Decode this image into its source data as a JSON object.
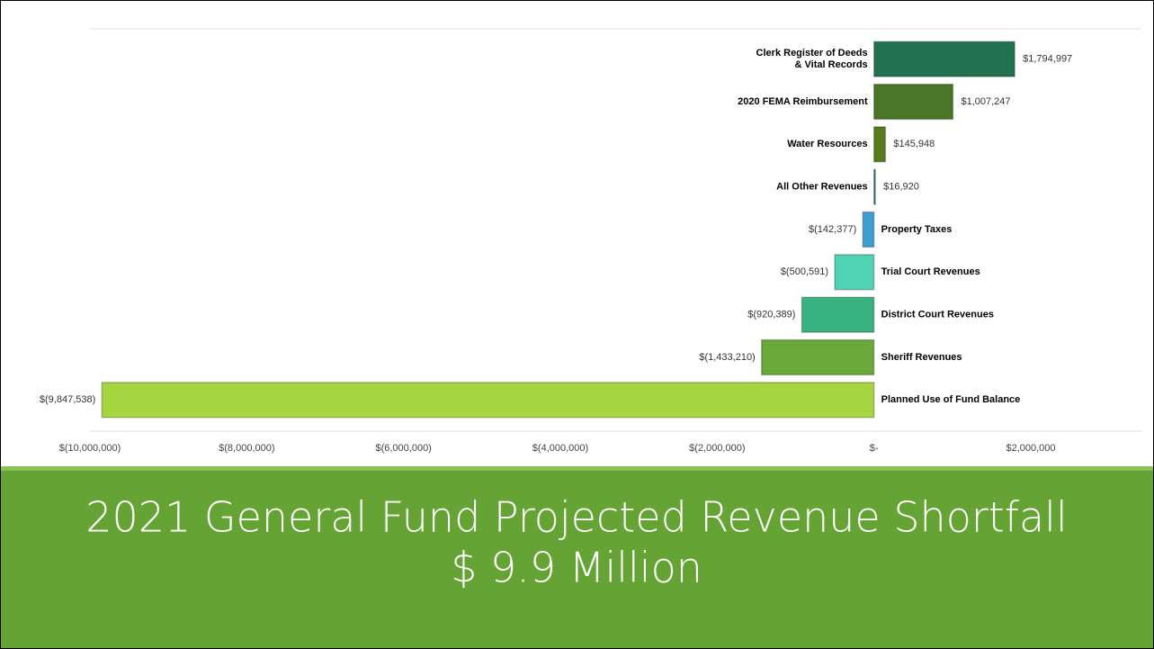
{
  "chart_data": {
    "type": "bar",
    "orientation": "horizontal",
    "title": "2021 General Fund Projected Revenue Shortfall",
    "subtitle": "$ 9.9 Million",
    "categories": [
      "Clerk Register of Deeds\n& Vital Records",
      "2020 FEMA Reimbursement",
      "Water Resources",
      "All Other Revenues",
      "Property Taxes",
      "Trial Court Revenues",
      "District Court Revenues",
      "Sheriff Revenues",
      "Planned Use of Fund Balance"
    ],
    "values": [
      1794997,
      1007247,
      145948,
      16920,
      -142377,
      -500591,
      -920389,
      -1433210,
      -9847538
    ],
    "value_labels": [
      "$1,794,997",
      "$1,007,247",
      "$145,948",
      "$16,920",
      "$(142,377)",
      "$(500,591)",
      "$(920,389)",
      "$(1,433,210)",
      "$(9,847,538)"
    ],
    "colors": [
      "#22714f",
      "#4a7526",
      "#577a1c",
      "#2f7fa8",
      "#3b9fd2",
      "#4fd3b4",
      "#38b27f",
      "#6aa83a",
      "#a5d640"
    ],
    "xlim": [
      -10000000,
      2000000
    ],
    "xticks": [
      {
        "value": -10000000,
        "label": "$(10,000,000)"
      },
      {
        "value": -8000000,
        "label": "$(8,000,000)"
      },
      {
        "value": -6000000,
        "label": "$(6,000,000)"
      },
      {
        "value": -4000000,
        "label": "$(4,000,000)"
      },
      {
        "value": -2000000,
        "label": "$(2,000,000)"
      },
      {
        "value": 0,
        "label": "$-"
      },
      {
        "value": 2000000,
        "label": "$2,000,000"
      }
    ],
    "grid": false
  }
}
